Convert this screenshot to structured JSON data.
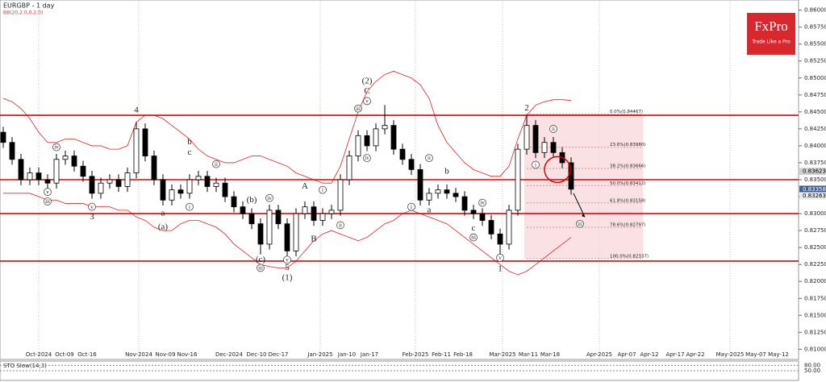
{
  "chart_data": {
    "type": "candlestick",
    "title": "EURGBP - 1 day",
    "indicator": "BB(20,2.0,0,2,0)",
    "brand": "FxPro",
    "tagline": "Trade Like a Pro",
    "ylim": [
      0.8085,
      0.8615
    ],
    "yticks": [
      {
        "value": 0.86,
        "label": "0.86000"
      },
      {
        "value": 0.8575,
        "label": "0.85750"
      },
      {
        "value": 0.855,
        "label": "0.85500"
      },
      {
        "value": 0.8525,
        "label": "0.85250"
      },
      {
        "value": 0.85,
        "label": "0.85000"
      },
      {
        "value": 0.8475,
        "label": "0.84750"
      },
      {
        "value": 0.845,
        "label": "0.84500"
      },
      {
        "value": 0.8425,
        "label": "0.84250"
      },
      {
        "value": 0.84,
        "label": "0.84000"
      },
      {
        "value": 0.8375,
        "label": "0.83750"
      },
      {
        "value": 0.835,
        "label": "0.83500"
      },
      {
        "value": 0.8325,
        "label": "0.83250"
      },
      {
        "value": 0.83,
        "label": "0.83000"
      },
      {
        "value": 0.8275,
        "label": "0.82750"
      },
      {
        "value": 0.825,
        "label": "0.82500"
      },
      {
        "value": 0.8225,
        "label": "0.82250"
      },
      {
        "value": 0.82,
        "label": "0.82000"
      },
      {
        "value": 0.8175,
        "label": "0.81750"
      },
      {
        "value": 0.815,
        "label": "0.81500"
      },
      {
        "value": 0.8125,
        "label": "0.81250"
      },
      {
        "value": 0.81,
        "label": "0.81000"
      }
    ],
    "x_labels": [
      "Oct-2024",
      "Oct-09",
      "Oct-16",
      "Nov-2024",
      "Nov-09",
      "Nov-16",
      "Dec-2024",
      "Dec-10",
      "Dec-17",
      "Jan-2025",
      "Jan-10",
      "Jan-17",
      "Feb-2025",
      "Feb-11",
      "Feb-18",
      "Mar-2025",
      "Mar-11",
      "Mar-18",
      "Apr-2025",
      "Apr-07",
      "Apr-12",
      "Apr-17",
      "Apr-22",
      "May-2025",
      "May-07",
      "May-12"
    ],
    "open": [
      0.842,
      0.8405,
      0.838,
      0.835,
      0.836,
      0.835,
      0.8345,
      0.838,
      0.8385,
      0.837,
      0.8355,
      0.833,
      0.8345,
      0.835,
      0.834,
      0.836,
      0.8425,
      0.8385,
      0.835,
      0.832,
      0.8335,
      0.833,
      0.835,
      0.8355,
      0.834,
      0.8345,
      0.8325,
      0.831,
      0.83,
      0.8285,
      0.8255,
      0.8305,
      0.8285,
      0.8245,
      0.83,
      0.831,
      0.829,
      0.83,
      0.8305,
      0.835,
      0.8385,
      0.8415,
      0.84,
      0.8425,
      0.843,
      0.8395,
      0.838,
      0.8365,
      0.832,
      0.833,
      0.8335,
      0.833,
      0.8325,
      0.8305,
      0.83,
      0.829,
      0.827,
      0.8255,
      0.8305,
      0.8395,
      0.843,
      0.839,
      0.8405,
      0.839,
      0.8375
    ],
    "high": [
      0.8428,
      0.8413,
      0.8388,
      0.8368,
      0.8368,
      0.8358,
      0.8388,
      0.8393,
      0.8393,
      0.8378,
      0.8363,
      0.8353,
      0.8358,
      0.8358,
      0.8368,
      0.8435,
      0.8433,
      0.8393,
      0.8358,
      0.8343,
      0.8343,
      0.8358,
      0.8363,
      0.8363,
      0.8353,
      0.8353,
      0.8333,
      0.8318,
      0.8308,
      0.8293,
      0.8313,
      0.8313,
      0.8293,
      0.8308,
      0.8318,
      0.8318,
      0.8308,
      0.8313,
      0.8358,
      0.8393,
      0.8423,
      0.8423,
      0.8433,
      0.846,
      0.8438,
      0.8403,
      0.8388,
      0.8373,
      0.8338,
      0.8343,
      0.8343,
      0.8338,
      0.8333,
      0.8313,
      0.8308,
      0.8298,
      0.8278,
      0.8313,
      0.8403,
      0.8445,
      0.8438,
      0.8413,
      0.8413,
      0.8398,
      0.8383
    ],
    "low": [
      0.8397,
      0.8372,
      0.8342,
      0.8342,
      0.8342,
      0.8337,
      0.8337,
      0.8372,
      0.8362,
      0.8347,
      0.8322,
      0.8322,
      0.8337,
      0.8332,
      0.8332,
      0.8352,
      0.8377,
      0.8342,
      0.8312,
      0.8312,
      0.8322,
      0.8322,
      0.8342,
      0.8332,
      0.8332,
      0.8317,
      0.8302,
      0.8292,
      0.8277,
      0.824,
      0.8247,
      0.8277,
      0.8235,
      0.8237,
      0.8292,
      0.8282,
      0.8282,
      0.8292,
      0.8297,
      0.8342,
      0.8377,
      0.8392,
      0.8392,
      0.8417,
      0.8387,
      0.8372,
      0.8357,
      0.8312,
      0.8312,
      0.8322,
      0.8322,
      0.8317,
      0.8297,
      0.8292,
      0.8282,
      0.8262,
      0.824,
      0.8247,
      0.8297,
      0.8387,
      0.8382,
      0.8382,
      0.8382,
      0.8367,
      0.8328
    ],
    "close": [
      0.8405,
      0.838,
      0.835,
      0.836,
      0.835,
      0.8345,
      0.838,
      0.8385,
      0.837,
      0.8355,
      0.833,
      0.8345,
      0.835,
      0.834,
      0.836,
      0.8425,
      0.8385,
      0.835,
      0.832,
      0.8335,
      0.833,
      0.835,
      0.8355,
      0.834,
      0.8345,
      0.8325,
      0.831,
      0.83,
      0.8285,
      0.8255,
      0.8305,
      0.8285,
      0.8245,
      0.83,
      0.831,
      0.829,
      0.83,
      0.8305,
      0.835,
      0.8385,
      0.8415,
      0.84,
      0.8425,
      0.843,
      0.8395,
      0.838,
      0.8365,
      0.832,
      0.833,
      0.8335,
      0.833,
      0.8325,
      0.8305,
      0.83,
      0.829,
      0.827,
      0.8255,
      0.8305,
      0.8395,
      0.843,
      0.839,
      0.8405,
      0.839,
      0.8375,
      0.8336
    ],
    "bands": [
      {
        "color": "#e02020",
        "values": [
          0.847,
          0.8465,
          0.8455,
          0.844,
          0.842,
          0.8405,
          0.8405,
          0.841,
          0.841,
          0.8405,
          0.84,
          0.84,
          0.8395,
          0.8395,
          0.84,
          0.8435,
          0.8445,
          0.8445,
          0.844,
          0.843,
          0.842,
          0.841,
          0.8395,
          0.8385,
          0.838,
          0.8375,
          0.8375,
          0.838,
          0.8385,
          0.8385,
          0.838,
          0.8375,
          0.837,
          0.836,
          0.8355,
          0.835,
          0.8345,
          0.8345,
          0.837,
          0.841,
          0.845,
          0.848,
          0.8495,
          0.8505,
          0.851,
          0.8505,
          0.85,
          0.849,
          0.847,
          0.843,
          0.8405,
          0.839,
          0.8375,
          0.8365,
          0.836,
          0.8355,
          0.8355,
          0.837,
          0.841,
          0.8445,
          0.846,
          0.8465,
          0.8468,
          0.8468,
          0.8467
        ]
      },
      {
        "color": "#e02020",
        "values": [
          0.833,
          0.833,
          0.833,
          0.833,
          0.8325,
          0.832,
          0.832,
          0.8315,
          0.8315,
          0.8315,
          0.831,
          0.831,
          0.831,
          0.8305,
          0.8305,
          0.8295,
          0.829,
          0.828,
          0.8275,
          0.8275,
          0.8285,
          0.829,
          0.829,
          0.8285,
          0.828,
          0.827,
          0.8255,
          0.8245,
          0.8235,
          0.8225,
          0.8222,
          0.822,
          0.822,
          0.823,
          0.8245,
          0.826,
          0.827,
          0.8275,
          0.827,
          0.8265,
          0.826,
          0.8265,
          0.8275,
          0.8285,
          0.829,
          0.83,
          0.8305,
          0.83,
          0.8295,
          0.829,
          0.8285,
          0.8275,
          0.8265,
          0.8255,
          0.8245,
          0.8235,
          0.8225,
          0.8215,
          0.821,
          0.8215,
          0.8225,
          0.8235,
          0.8245,
          0.8255,
          0.8265
        ]
      }
    ],
    "levels": [
      0.8445,
      0.835,
      0.83,
      0.823
    ],
    "level_color": "#e00000",
    "fib": [
      {
        "value": 0.84467,
        "label": "0.0%(0.84467)"
      },
      {
        "value": 0.8398,
        "label": "23.6%(0.83980)"
      },
      {
        "value": 0.83666,
        "label": "38.2%(0.83666)"
      },
      {
        "value": 0.83412,
        "label": "50.0%(0.83412)"
      },
      {
        "value": 0.83158,
        "label": "61.8%(0.83158)"
      },
      {
        "value": 0.82797,
        "label": "78.6%(0.82797)"
      },
      {
        "value": 0.82337,
        "label": "100.0%(0.82337)"
      }
    ],
    "price_tags": [
      {
        "value": 0.83623,
        "label": "0.83623"
      },
      {
        "value": 0.83358,
        "label": "0.83358"
      },
      {
        "value": 0.83263,
        "label": "0.83263"
      }
    ],
    "annotations": [
      {
        "text": "4",
        "index": 15,
        "price": 0.8452
      },
      {
        "text": "3",
        "index": 10,
        "price": 0.8295
      },
      {
        "text": "5",
        "index": 32,
        "price": 0.822
      },
      {
        "text": "(1)",
        "index": 32,
        "price": 0.8205
      },
      {
        "text": "A",
        "index": 34,
        "price": 0.834
      },
      {
        "text": "B",
        "index": 35,
        "price": 0.8262
      },
      {
        "text": "(2)",
        "index": 41,
        "price": 0.8495
      },
      {
        "text": "C",
        "index": 41,
        "price": 0.848
      },
      {
        "text": "1",
        "index": 56,
        "price": 0.8218
      },
      {
        "text": "2",
        "index": 59,
        "price": 0.8455
      },
      {
        "text": "(a)",
        "index": 18,
        "price": 0.828
      },
      {
        "text": "(b)",
        "index": 28,
        "price": 0.832
      },
      {
        "text": "(c)",
        "index": 29,
        "price": 0.8232
      },
      {
        "text": "a",
        "index": 18,
        "price": 0.83
      },
      {
        "text": "b",
        "index": 21,
        "price": 0.8405
      },
      {
        "text": "c",
        "index": 21,
        "price": 0.839
      },
      {
        "text": "a",
        "index": 48,
        "price": 0.8305
      },
      {
        "text": "b",
        "index": 50,
        "price": 0.8362
      },
      {
        "text": "c",
        "index": 53,
        "price": 0.8278
      }
    ],
    "circled": [
      {
        "text": "iv",
        "index": 6,
        "price": 0.8398
      },
      {
        "text": "v",
        "index": 5,
        "price": 0.8332
      },
      {
        "text": "iii",
        "index": 5,
        "price": 0.8318
      },
      {
        "text": "v",
        "index": 10,
        "price": 0.831
      },
      {
        "text": "i",
        "index": 21,
        "price": 0.831
      },
      {
        "text": "ii",
        "index": 24,
        "price": 0.8373
      },
      {
        "text": "iv",
        "index": 30,
        "price": 0.8323
      },
      {
        "text": "iii",
        "index": 29,
        "price": 0.822
      },
      {
        "text": "v",
        "index": 32,
        "price": 0.8232
      },
      {
        "text": "i",
        "index": 36,
        "price": 0.8335
      },
      {
        "text": "ii",
        "index": 38,
        "price": 0.8283
      },
      {
        "text": "iii",
        "index": 40,
        "price": 0.8455
      },
      {
        "text": "iv",
        "index": 41,
        "price": 0.8382
      },
      {
        "text": "v",
        "index": 41,
        "price": 0.8466
      },
      {
        "text": "i",
        "index": 46,
        "price": 0.831
      },
      {
        "text": "ii",
        "index": 48,
        "price": 0.8382
      },
      {
        "text": "iii",
        "index": 53,
        "price": 0.8265
      },
      {
        "text": "iv",
        "index": 54,
        "price": 0.8316
      },
      {
        "text": "v",
        "index": 56,
        "price": 0.8235
      },
      {
        "text": "i",
        "index": 60,
        "price": 0.8372
      },
      {
        "text": "ii",
        "index": 62,
        "price": 0.8425
      },
      {
        "text": "iii",
        "index": 65,
        "price": 0.8285
      }
    ],
    "oscillator": {
      "name": "STO Slow(14,3)",
      "ticks": [
        {
          "value": 80,
          "label": "80.00"
        },
        {
          "value": 50,
          "label": "50.00"
        }
      ]
    }
  }
}
